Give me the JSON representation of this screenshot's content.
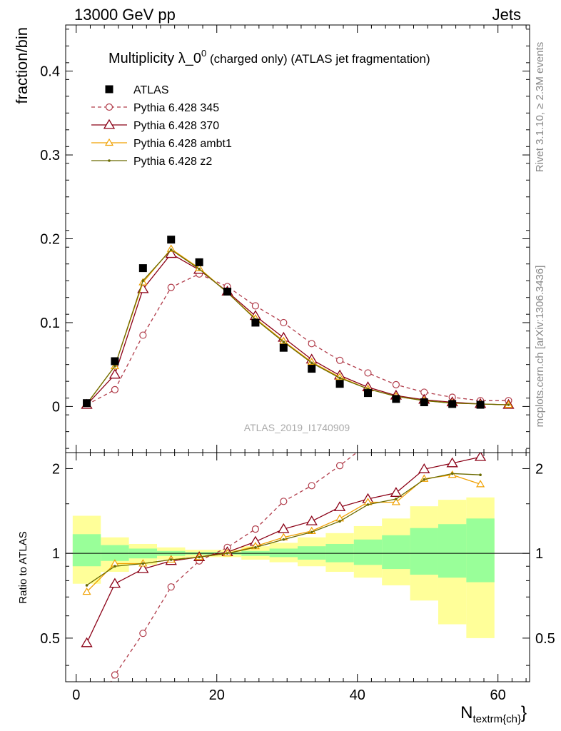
{
  "header": {
    "left": "13000 GeV pp",
    "right": "Jets"
  },
  "side_labels": {
    "top": "Rivet 3.1.10, ≥ 2.3M events",
    "bottom": "mcplots.cern.ch [arXiv:1306.3436]"
  },
  "chart_data": [
    {
      "type": "line",
      "panel": "main",
      "title_main": "Multiplicity λ_0",
      "title_sup": "0",
      "title_rest": " (charged only) (ATLAS jet fragmentation)",
      "ylabel": "fraction/bin",
      "watermark": "ATLAS_2019_I1740909",
      "xlim": [
        -1.5,
        64.5
      ],
      "ylim": [
        -0.055,
        0.455
      ],
      "yticks": [
        0,
        0.1,
        0.2,
        0.3,
        0.4
      ],
      "ytick_labels": [
        "0",
        "0.1",
        "0.2",
        "0.3",
        "0.4"
      ],
      "legend_position": "top-left",
      "x": [
        1.5,
        5.5,
        9.5,
        13.5,
        17.5,
        21.5,
        25.5,
        29.5,
        33.5,
        37.5,
        41.5,
        45.5,
        49.5,
        53.5,
        57.5,
        61.5
      ],
      "series": [
        {
          "name": "ATLAS",
          "color": "#000000",
          "style": "data",
          "values": [
            0.004,
            0.054,
            0.165,
            0.199,
            0.172,
            0.137,
            0.1,
            0.07,
            0.045,
            0.027,
            0.016,
            0.009,
            0.005,
            0.003,
            0.002,
            null
          ]
        },
        {
          "name": "Pythia 6.428 345",
          "color": "#b03a48",
          "style": "dashed-circle",
          "values": [
            0.002,
            0.02,
            0.085,
            0.142,
            0.158,
            0.143,
            0.12,
            0.1,
            0.075,
            0.055,
            0.04,
            0.026,
            0.017,
            0.011,
            0.007,
            0.007
          ]
        },
        {
          "name": "Pythia 6.428 370",
          "color": "#8b0016",
          "style": "solid-triangle",
          "values": [
            0.002,
            0.038,
            0.14,
            0.182,
            0.163,
            0.137,
            0.108,
            0.082,
            0.056,
            0.037,
            0.023,
            0.013,
            0.008,
            0.005,
            0.003,
            0.002
          ]
        },
        {
          "name": "Pythia 6.428 ambt1",
          "color": "#f0a000",
          "style": "solid-smalltriangle",
          "values": [
            0.003,
            0.048,
            0.148,
            0.188,
            0.165,
            0.136,
            0.105,
            0.078,
            0.053,
            0.035,
            0.021,
            0.012,
            0.007,
            0.004,
            0.003,
            0.002
          ]
        },
        {
          "name": "Pythia 6.428 z2",
          "color": "#6b6b00",
          "style": "solid-dot",
          "values": [
            0.003,
            0.048,
            0.15,
            0.187,
            0.164,
            0.136,
            0.104,
            0.077,
            0.052,
            0.034,
            0.021,
            0.012,
            0.007,
            0.004,
            0.003,
            0.002
          ]
        }
      ]
    },
    {
      "type": "line",
      "panel": "ratio",
      "ylabel": "Ratio to ATLAS",
      "xlabel_main": "N",
      "xlabel_sub": "textrm{ch}",
      "xlabel_close": "}",
      "xlim": [
        -1.5,
        64.5
      ],
      "ylim": [
        0.35,
        2.28
      ],
      "yticks": [
        0.5,
        1,
        2
      ],
      "ytick_labels": [
        "0.5",
        "1",
        "2"
      ],
      "xticks": [
        0,
        20,
        40,
        60
      ],
      "xtick_labels": [
        "0",
        "20",
        "40",
        "60"
      ],
      "bands": {
        "edges": [
          -0.5,
          3.5,
          7.5,
          11.5,
          15.5,
          19.5,
          23.5,
          27.5,
          31.5,
          35.5,
          39.5,
          43.5,
          47.5,
          51.5,
          55.5,
          59.5
        ],
        "yellow_low": [
          0.78,
          0.86,
          0.91,
          0.95,
          0.97,
          0.97,
          0.95,
          0.93,
          0.9,
          0.86,
          0.82,
          0.77,
          0.68,
          0.56,
          0.5
        ],
        "yellow_high": [
          1.36,
          1.14,
          1.08,
          1.05,
          1.03,
          1.03,
          1.06,
          1.09,
          1.14,
          1.18,
          1.25,
          1.33,
          1.47,
          1.55,
          1.58
        ],
        "green_low": [
          0.9,
          0.94,
          0.96,
          0.98,
          0.99,
          0.99,
          0.98,
          0.97,
          0.95,
          0.93,
          0.91,
          0.88,
          0.84,
          0.82,
          0.79
        ],
        "green_high": [
          1.17,
          1.07,
          1.04,
          1.02,
          1.01,
          1.01,
          1.02,
          1.04,
          1.06,
          1.08,
          1.12,
          1.16,
          1.23,
          1.27,
          1.33
        ],
        "yellow_color": "#ffff99",
        "green_color": "#99ff99"
      },
      "x": [
        1.5,
        5.5,
        9.5,
        13.5,
        17.5,
        21.5,
        25.5,
        29.5,
        33.5,
        37.5,
        41.5,
        45.5,
        49.5,
        53.5,
        57.5
      ],
      "series": [
        {
          "name": "Pythia 6.428 345",
          "color": "#b03a48",
          "style": "dashed-circle",
          "values": [
            0.25,
            0.37,
            0.52,
            0.76,
            0.94,
            1.05,
            1.22,
            1.53,
            1.74,
            2.05,
            2.45,
            null,
            null,
            null,
            null
          ]
        },
        {
          "name": "Pythia 6.428 370",
          "color": "#8b0016",
          "style": "solid-triangle",
          "values": [
            0.48,
            0.78,
            0.88,
            0.94,
            0.97,
            1.01,
            1.1,
            1.22,
            1.3,
            1.46,
            1.56,
            1.64,
            1.99,
            2.09,
            2.2
          ]
        },
        {
          "name": "Pythia 6.428 ambt1",
          "color": "#f0a000",
          "style": "solid-smalltriangle",
          "values": [
            0.73,
            0.92,
            0.92,
            0.95,
            0.97,
            1.0,
            1.06,
            1.14,
            1.2,
            1.33,
            1.52,
            1.52,
            1.84,
            1.9,
            1.76
          ]
        },
        {
          "name": "Pythia 6.428 z2",
          "color": "#6b6b00",
          "style": "solid-dot",
          "values": [
            0.77,
            0.9,
            0.92,
            0.95,
            0.97,
            1.0,
            1.05,
            1.12,
            1.19,
            1.3,
            1.49,
            1.56,
            1.83,
            1.92,
            1.9
          ]
        }
      ]
    }
  ]
}
